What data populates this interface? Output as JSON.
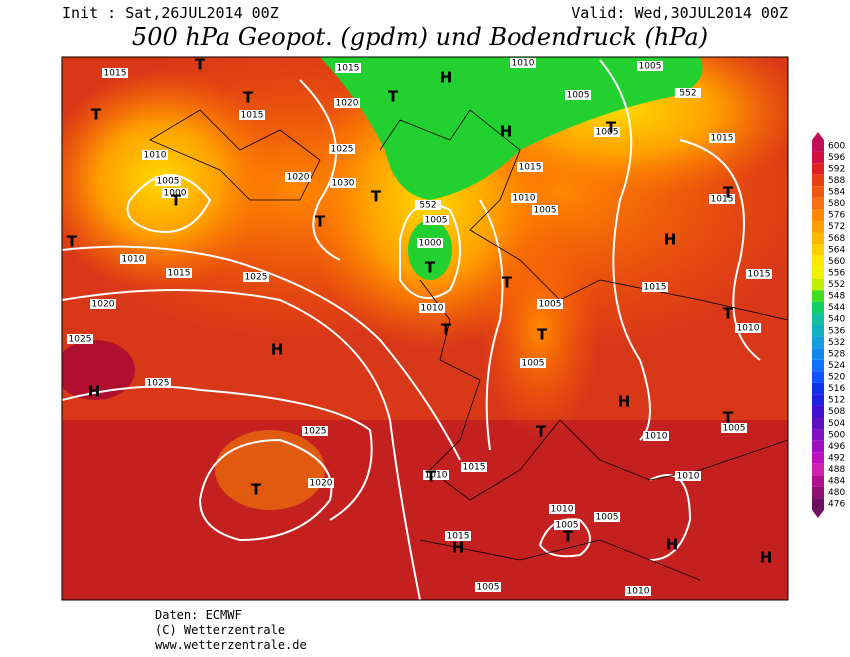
{
  "header": {
    "init": "Init : Sat,26JUL2014 00Z",
    "valid": "Valid: Wed,30JUL2014 00Z",
    "title": "500 hPa Geopot. (gpdm) und Bodendruck (hPa)"
  },
  "map": {
    "isobar_labels": [
      "1015",
      "1015",
      "1010",
      "1005",
      "1020",
      "1015",
      "1005",
      "1005",
      "1015",
      "1010",
      "1025",
      "1020",
      "1030",
      "1005",
      "1000",
      "1015",
      "1010",
      "1005",
      "1015",
      "552",
      "1005",
      "1000",
      "1010",
      "1015",
      "1025",
      "1015",
      "1015",
      "1020",
      "1010",
      "1005",
      "1010",
      "1025",
      "1005",
      "1025",
      "1025",
      "1010",
      "1005",
      "1015",
      "1010",
      "1020",
      "1010",
      "1010",
      "1005",
      "1005",
      "1015",
      "1005",
      "1010",
      "552"
    ],
    "markers": [
      "T",
      "T",
      "T",
      "T",
      "T",
      "T",
      "T",
      "T",
      "T",
      "T",
      "T",
      "T",
      "T",
      "T",
      "T",
      "T",
      "T",
      "T",
      "T",
      "T",
      "H",
      "H",
      "H",
      "H",
      "H",
      "H",
      "H",
      "H",
      "H"
    ]
  },
  "colorbar": [
    600,
    596,
    592,
    588,
    584,
    580,
    576,
    572,
    568,
    564,
    560,
    556,
    552,
    548,
    544,
    540,
    536,
    532,
    528,
    524,
    520,
    516,
    512,
    508,
    504,
    500,
    496,
    492,
    488,
    484,
    480,
    476
  ],
  "footer": {
    "source": "Daten: ECMWF",
    "copyright": "(C) Wetterzentrale",
    "url": "www.wetterzentrale.de"
  }
}
